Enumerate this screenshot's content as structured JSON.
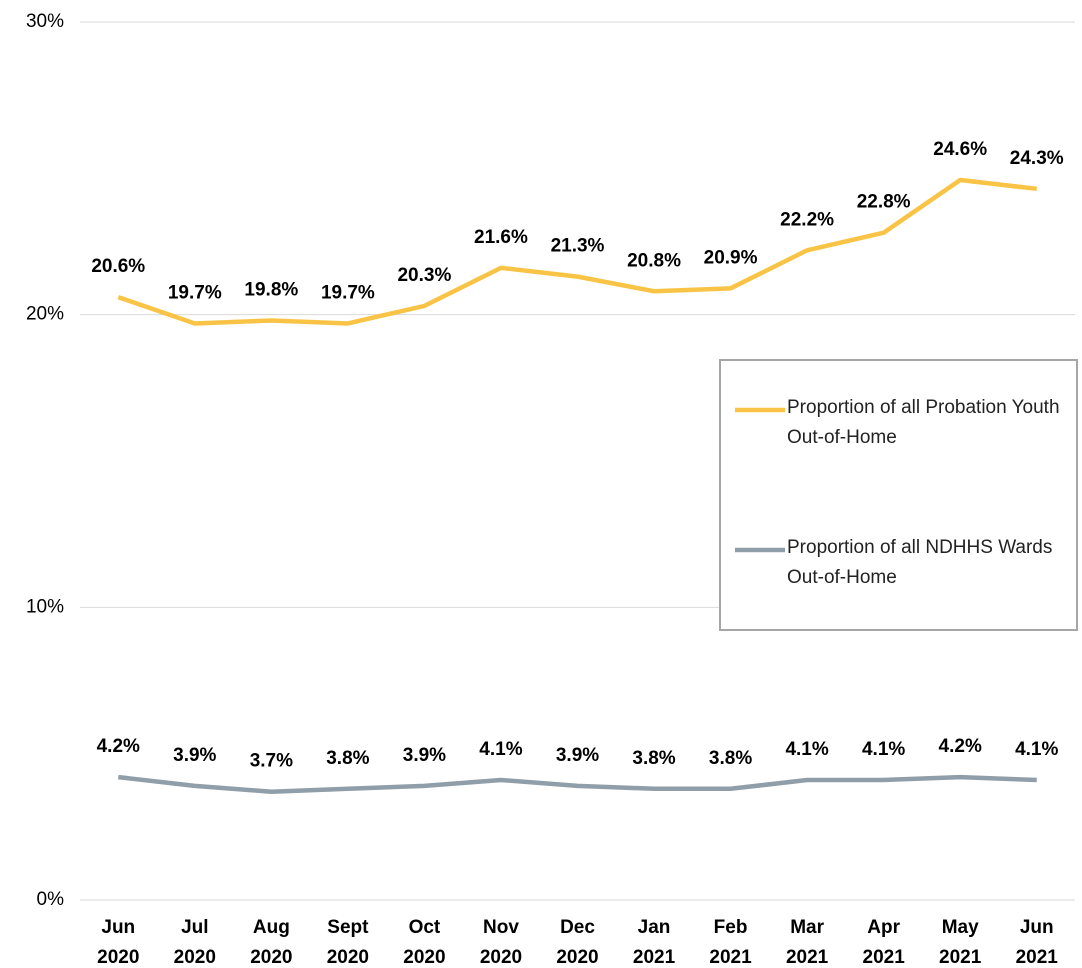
{
  "chart_data": {
    "type": "line",
    "categories": [
      "Jun 2020",
      "Jul 2020",
      "Aug 2020",
      "Sept 2020",
      "Oct 2020",
      "Nov 2020",
      "Dec 2020",
      "Jan 2021",
      "Feb 2021",
      "Mar 2021",
      "Apr 2021",
      "May 2021",
      "Jun 2021"
    ],
    "series": [
      {
        "name": "Proportion of all Probation Youth Out-of-Home",
        "color": "#f9c446",
        "values": [
          20.6,
          19.7,
          19.8,
          19.7,
          20.3,
          21.6,
          21.3,
          20.8,
          20.9,
          22.2,
          22.8,
          24.6,
          24.3
        ],
        "value_labels": [
          "20.6%",
          "19.7%",
          "19.8%",
          "19.7%",
          "20.3%",
          "21.6%",
          "21.3%",
          "20.8%",
          "20.9%",
          "22.2%",
          "22.8%",
          "24.6%",
          "24.3%"
        ]
      },
      {
        "name": "Proportion of all NDHHS Wards Out-of-Home",
        "color": "#8f9ea9",
        "values": [
          4.2,
          3.9,
          3.7,
          3.8,
          3.9,
          4.1,
          3.9,
          3.8,
          3.8,
          4.1,
          4.1,
          4.2,
          4.1
        ],
        "value_labels": [
          "4.2%",
          "3.9%",
          "3.7%",
          "3.8%",
          "3.9%",
          "4.1%",
          "3.9%",
          "3.8%",
          "3.8%",
          "4.1%",
          "4.1%",
          "4.2%",
          "4.1%"
        ]
      }
    ],
    "ylim": [
      0,
      30
    ],
    "yticks": [
      {
        "value": 0,
        "label": "0%"
      },
      {
        "value": 10,
        "label": "10%"
      },
      {
        "value": 20,
        "label": "20%"
      },
      {
        "value": 30,
        "label": "30%"
      }
    ],
    "grid": true,
    "legend": "right"
  }
}
